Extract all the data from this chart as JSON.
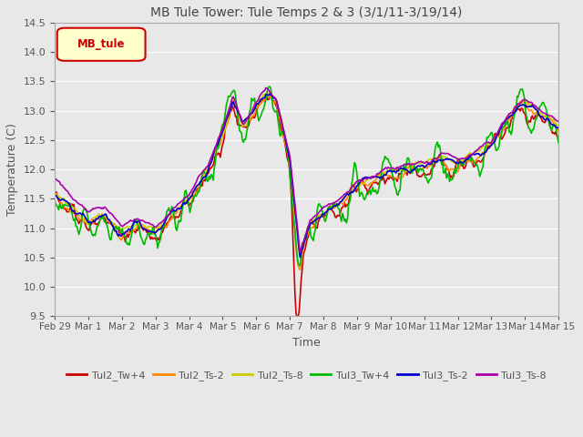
{
  "title": "MB Tule Tower: Tule Temps 2 & 3 (3/1/11-3/19/14)",
  "xlabel": "Time",
  "ylabel": "Temperature (C)",
  "ylim": [
    9.5,
    14.5
  ],
  "yticks": [
    9.5,
    10.0,
    10.5,
    11.0,
    11.5,
    12.0,
    12.5,
    13.0,
    13.5,
    14.0,
    14.5
  ],
  "xtick_labels": [
    "Feb 29",
    "Mar 1",
    "Mar 2",
    "Mar 3",
    "Mar 4",
    "Mar 5",
    "Mar 6",
    "Mar 7",
    "Mar 8",
    "Mar 9",
    "Mar 10",
    "Mar 11",
    "Mar 12",
    "Mar 13",
    "Mar 14",
    "Mar 15"
  ],
  "legend_label": "MB_tule",
  "series": {
    "Tul2_Tw+4": {
      "color": "#cc0000",
      "lw": 1.2
    },
    "Tul2_Ts-2": {
      "color": "#ff8800",
      "lw": 1.2
    },
    "Tul2_Ts-8": {
      "color": "#cccc00",
      "lw": 1.2
    },
    "Tul3_Tw+4": {
      "color": "#00bb00",
      "lw": 1.2
    },
    "Tul3_Ts-2": {
      "color": "#0000cc",
      "lw": 1.2
    },
    "Tul3_Ts-8": {
      "color": "#aa00aa",
      "lw": 1.2
    }
  },
  "background_color": "#e8e8e8",
  "plot_bg_color": "#e8e8e8",
  "grid_color": "#ffffff",
  "title_color": "#444444",
  "axis_color": "#555555",
  "figsize": [
    6.4,
    4.8
  ],
  "dpi": 100
}
